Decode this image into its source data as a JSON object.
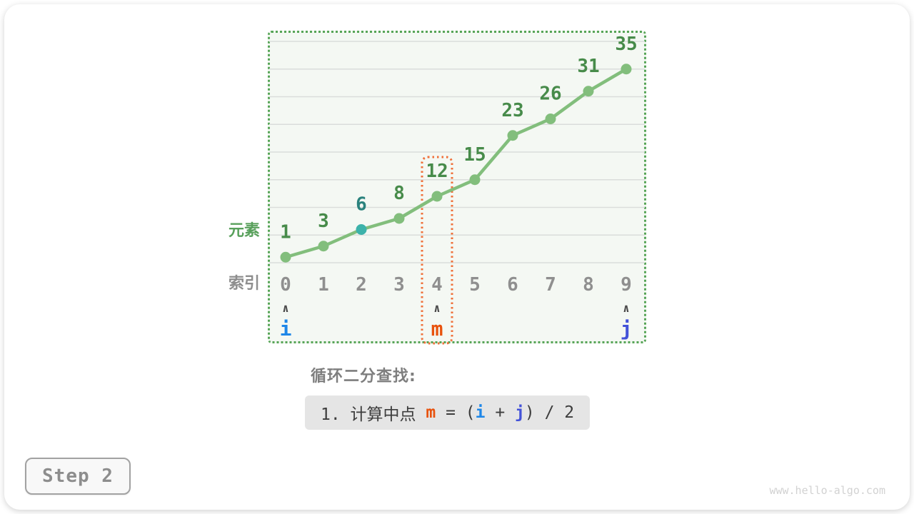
{
  "chart_data": {
    "type": "line",
    "title": "",
    "y_axis_label": "元素",
    "x_axis_label": "索引",
    "x": [
      0,
      1,
      2,
      3,
      4,
      5,
      6,
      7,
      8,
      9
    ],
    "values": [
      1,
      3,
      6,
      8,
      12,
      15,
      23,
      26,
      31,
      35
    ],
    "ylim": [
      0,
      40
    ],
    "grid_step": 5,
    "grid": "horizontal-only",
    "legend": "none",
    "highlight_point": {
      "index": 2,
      "dot_color": "#3cb2aa",
      "label_color": "#2a827d"
    },
    "midpoint_box": {
      "index": 4,
      "color": "#f0703a"
    },
    "pointers": [
      {
        "name": "i",
        "index": 0,
        "color": "#1e87e8"
      },
      {
        "name": "m",
        "index": 4,
        "color": "#e8520d"
      },
      {
        "name": "j",
        "index": 9,
        "color": "#4352d8"
      }
    ],
    "arrow_glyph": "∧",
    "colors": {
      "line": "#82be7c",
      "value_label": "#478b4a",
      "index_label": "#8f8f8f",
      "axis_label_y": "#58a05b",
      "axis_label_x": "#8e8e8e",
      "border": "#57a557",
      "grid": "#dadddb",
      "background": "#f4f8f3",
      "arrow": "#4a4a4a"
    }
  },
  "caption": {
    "heading": "循环二分查找:",
    "formula": {
      "prefix": "1. 计算中点 ",
      "m": "m",
      "eq": " = (",
      "i": "i",
      "plus": " + ",
      "j": "j",
      "suffix": ") / 2"
    }
  },
  "footer": {
    "step_label": "Step 2",
    "watermark": "www.hello-algo.com"
  }
}
